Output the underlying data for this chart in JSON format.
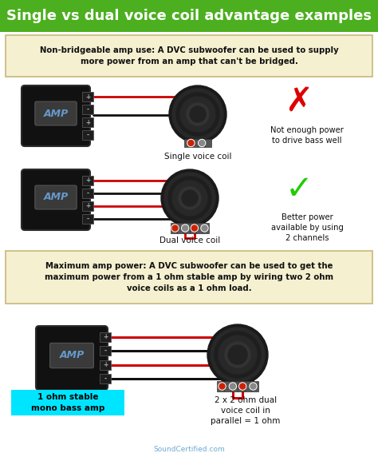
{
  "title": "Single vs dual voice coil advantage examples",
  "title_bg": "#4caf1f",
  "title_color": "white",
  "bg_color": "white",
  "box1_text": "Non-bridgeable amp use: A DVC subwoofer can be used to supply\nmore power from an amp that can't be bridged.",
  "box2_text": "Maximum amp power: A DVC subwoofer can be used to get the\nmaximum power from a 1 ohm stable amp by wiring two 2 ohm\nvoice coils as a 1 ohm load.",
  "box_bg": "#f5f0d0",
  "box_border": "#c8b87a",
  "label1": "Single voice coil",
  "label2": "Dual voice coil",
  "label3": "2 x 2 ohm dual\nvoice coil in\nparallel = 1 ohm",
  "label4": "1 ohm stable\nmono bass amp",
  "label4_bg": "#00e5ff",
  "note1": "Not enough power\nto drive bass well",
  "note2": "Better power\navailable by using\n2 channels",
  "watermark": "SoundCertified.com",
  "wire_red": "#cc0000",
  "wire_black": "#111111",
  "amp_label_color": "#6699cc",
  "title_fontsize": 13.0
}
